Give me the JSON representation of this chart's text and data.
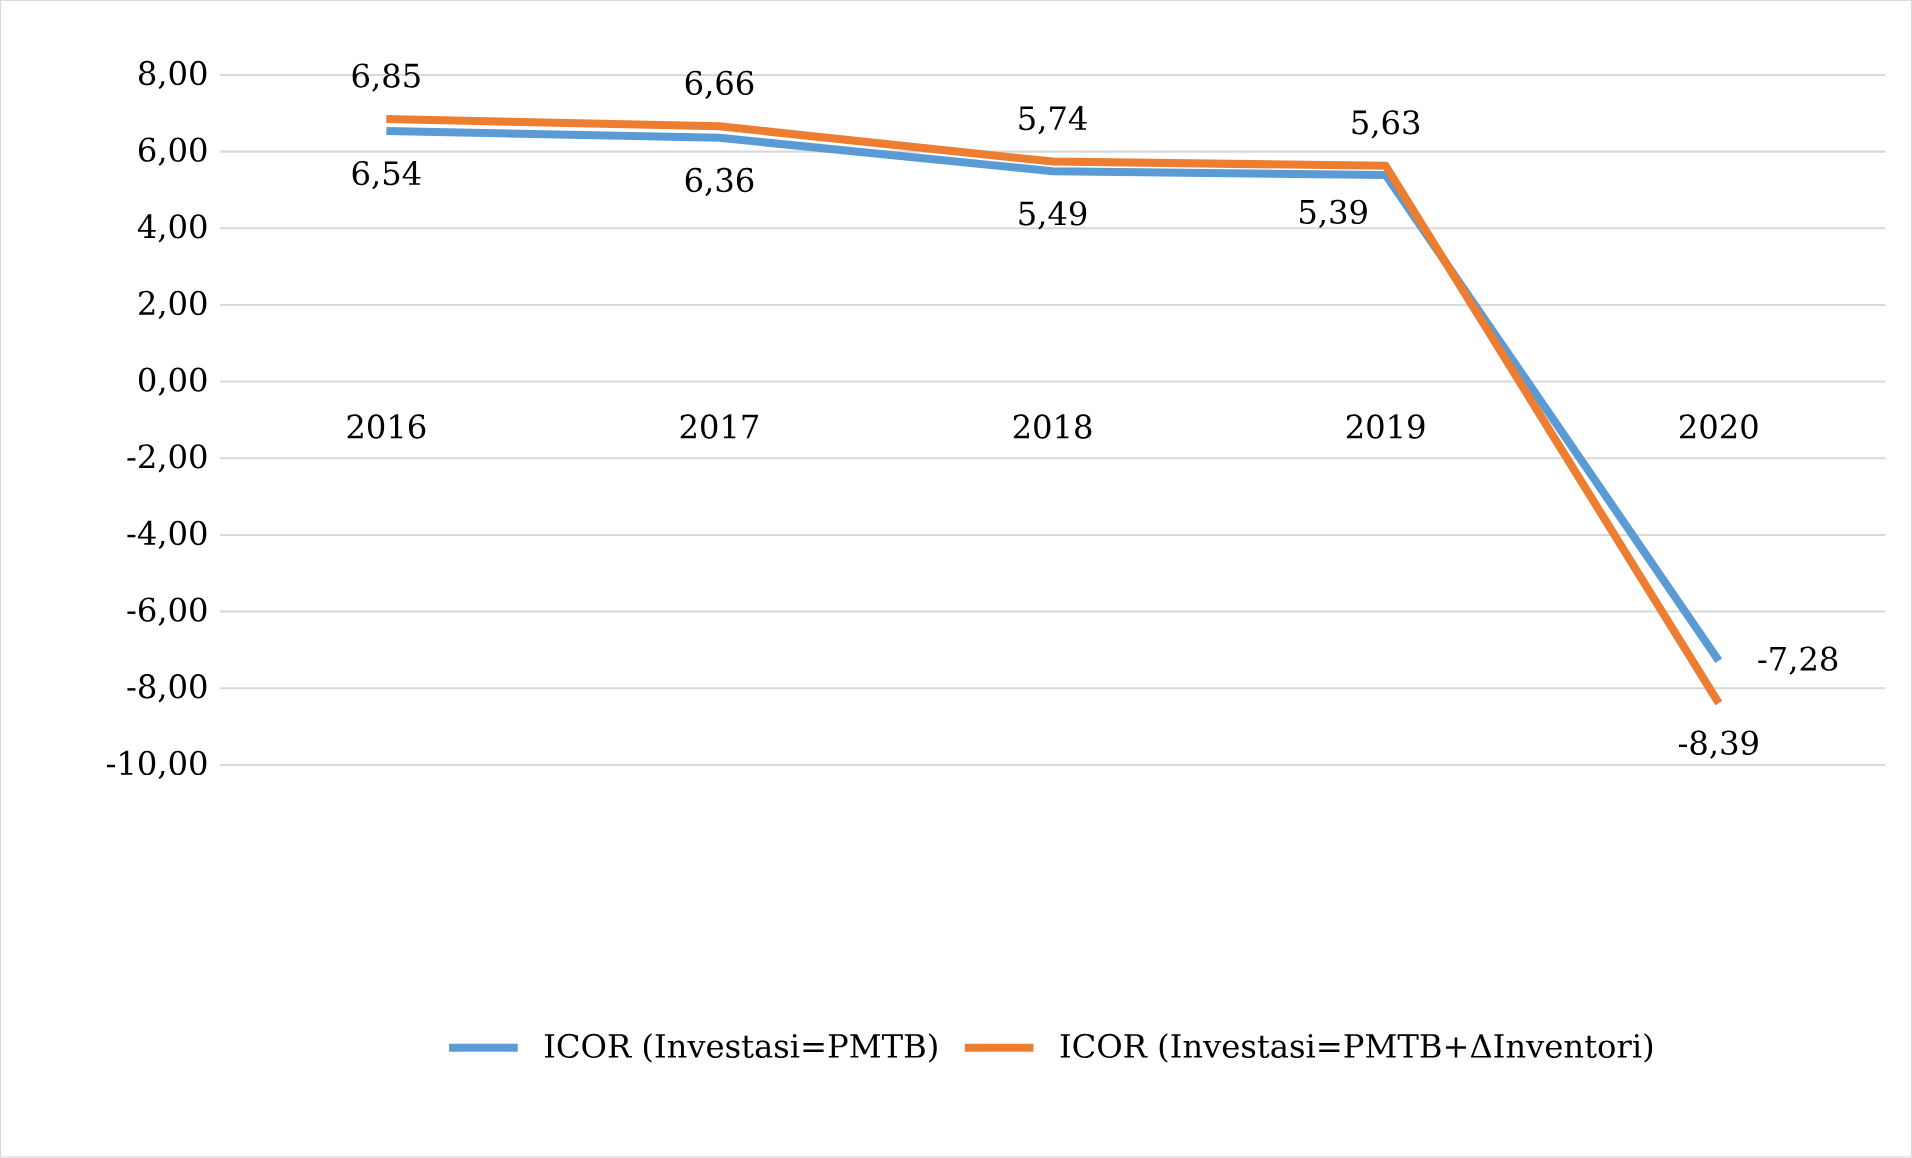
{
  "chart_data": {
    "type": "line",
    "categories": [
      "2016",
      "2017",
      "2018",
      "2019",
      "2020"
    ],
    "series": [
      {
        "name": "ICOR (Investasi=PMTB)",
        "color": "#5b9bd5",
        "values": [
          6.54,
          6.36,
          5.49,
          5.39,
          -7.28
        ],
        "value_labels": [
          "6,54",
          "6,36",
          "5,49",
          "5,39",
          "-7,28"
        ]
      },
      {
        "name": "ICOR (Investasi=PMTB+ΔInventori)",
        "color": "#ed7d31",
        "values": [
          6.85,
          6.66,
          5.74,
          5.63,
          -8.39
        ],
        "value_labels": [
          "6,85",
          "6,66",
          "5,74",
          "5,63",
          "-8,39"
        ]
      }
    ],
    "ylim": [
      -10,
      8
    ],
    "yticks": [
      {
        "value": -10,
        "label": "-10,00"
      },
      {
        "value": -8,
        "label": "-8,00"
      },
      {
        "value": -6,
        "label": "-6,00"
      },
      {
        "value": -4,
        "label": "-4,00"
      },
      {
        "value": -2,
        "label": "-2,00"
      },
      {
        "value": 0,
        "label": "0,00"
      },
      {
        "value": 2,
        "label": "2,00"
      },
      {
        "value": 4,
        "label": "4,00"
      },
      {
        "value": 6,
        "label": "6,00"
      },
      {
        "value": 8,
        "label": "8,00"
      }
    ],
    "grid": "y",
    "legend": "bottom",
    "marker": "none",
    "line_style": "solid"
  }
}
